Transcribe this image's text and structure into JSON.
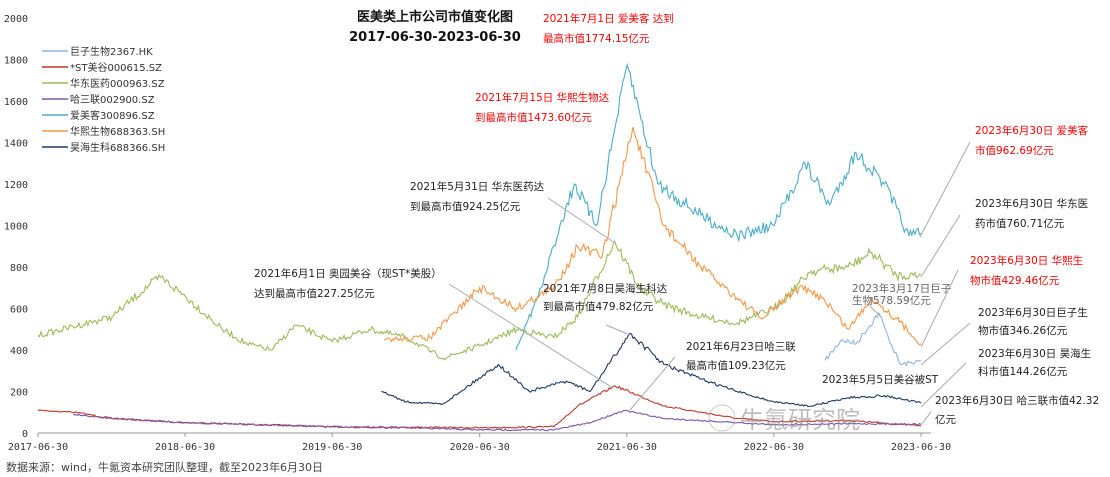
{
  "chart_data": {
    "type": "line",
    "title": "医美类上市公司市值变化图",
    "subtitle": "2017-06-30-2023-06-30",
    "xlabel": "",
    "ylabel": "",
    "ylim": [
      0,
      2000
    ],
    "yticks": [
      "0",
      "200",
      "400",
      "600",
      "800",
      "1000",
      "1200",
      "1400",
      "1600",
      "1800",
      "2000"
    ],
    "xlim": [
      "2017-06-30",
      "2023-06-30"
    ],
    "xticks": [
      "2017-06-30",
      "2018-06-30",
      "2019-06-30",
      "2020-06-30",
      "2021-06-30",
      "2022-06-30",
      "2023-06-30"
    ],
    "grid": false,
    "legend_position": "top-left",
    "series": [
      {
        "name": "巨子生物2367.HK",
        "color": "#8eb4e3",
        "x": [
          "2022-11-04",
          "2022-12-15",
          "2023-01-20",
          "2023-03-17",
          "2023-04-10",
          "2023-05-10",
          "2023-06-30"
        ],
        "values": [
          350,
          450,
          430,
          578.59,
          460,
          330,
          346.26
        ]
      },
      {
        "name": "*ST美谷000615.SZ",
        "color": "#c0392b",
        "x": [
          "2017-06-30",
          "2017-09-30",
          "2017-12-31",
          "2018-06-30",
          "2018-12-31",
          "2019-06-30",
          "2019-12-31",
          "2020-06-30",
          "2020-12-31",
          "2021-02-28",
          "2021-06-01",
          "2021-09-30",
          "2021-12-31",
          "2022-03-31",
          "2022-06-30",
          "2022-12-31",
          "2023-06-30"
        ],
        "values": [
          110,
          100,
          70,
          50,
          40,
          30,
          28,
          25,
          30,
          130,
          227.25,
          130,
          100,
          70,
          55,
          60,
          35
        ]
      },
      {
        "name": "华东医药000963.SZ",
        "color": "#9bbb59",
        "x": [
          "2017-06-30",
          "2017-12-31",
          "2018-03-31",
          "2018-04-30",
          "2018-06-30",
          "2018-09-30",
          "2018-11-30",
          "2019-01-31",
          "2019-03-31",
          "2019-06-30",
          "2019-09-30",
          "2019-12-31",
          "2020-03-31",
          "2020-06-30",
          "2020-09-30",
          "2020-12-31",
          "2021-02-28",
          "2021-05-31",
          "2021-07-31",
          "2021-09-30",
          "2021-12-31",
          "2022-03-31",
          "2022-06-30",
          "2022-09-30",
          "2022-12-31",
          "2023-02-28",
          "2023-04-30",
          "2023-06-30"
        ],
        "values": [
          470,
          560,
          710,
          750,
          660,
          500,
          430,
          400,
          520,
          440,
          500,
          460,
          360,
          420,
          500,
          460,
          560,
          924.25,
          700,
          620,
          560,
          530,
          600,
          780,
          800,
          870,
          760,
          760.71
        ]
      },
      {
        "name": "哈三联002900.SZ",
        "color": "#7e57a8",
        "x": [
          "2017-09-25",
          "2017-12-31",
          "2018-06-30",
          "2018-12-31",
          "2019-06-30",
          "2019-12-31",
          "2020-06-30",
          "2020-12-31",
          "2021-03-31",
          "2021-06-23",
          "2021-09-30",
          "2021-12-31",
          "2022-06-30",
          "2022-12-31",
          "2023-06-30"
        ],
        "values": [
          90,
          70,
          50,
          40,
          30,
          25,
          15,
          15,
          50,
          109.23,
          70,
          60,
          40,
          45,
          42.32
        ]
      },
      {
        "name": "爱美客300896.SZ",
        "color": "#4bacc6",
        "x": [
          "2020-09-28",
          "2020-11-30",
          "2021-01-15",
          "2021-02-20",
          "2021-04-15",
          "2021-07-01",
          "2021-09-15",
          "2021-12-31",
          "2022-03-31",
          "2022-06-30",
          "2022-09-15",
          "2022-11-15",
          "2023-01-20",
          "2023-03-31",
          "2023-05-31",
          "2023-06-30"
        ],
        "values": [
          400,
          700,
          1000,
          1200,
          1000,
          1774.15,
          1200,
          1050,
          950,
          1000,
          1300,
          1100,
          1350,
          1200,
          950,
          962.69
        ]
      },
      {
        "name": "华熙生物688363.SH",
        "color": "#f79646",
        "x": [
          "2019-11-06",
          "2020-02-28",
          "2020-06-30",
          "2020-09-30",
          "2020-12-31",
          "2021-02-28",
          "2021-04-30",
          "2021-07-15",
          "2021-09-30",
          "2021-12-31",
          "2022-03-31",
          "2022-05-31",
          "2022-08-31",
          "2022-10-31",
          "2022-12-31",
          "2023-02-28",
          "2023-04-30",
          "2023-06-30"
        ],
        "values": [
          450,
          460,
          700,
          600,
          700,
          900,
          850,
          1473.6,
          1000,
          800,
          650,
          550,
          700,
          650,
          500,
          650,
          550,
          429.46
        ]
      },
      {
        "name": "昊海生科688366.SH",
        "color": "#1f3864",
        "x": [
          "2019-10-30",
          "2019-12-31",
          "2020-03-31",
          "2020-08-15",
          "2020-10-31",
          "2021-01-31",
          "2021-03-31",
          "2021-07-08",
          "2021-09-30",
          "2021-12-31",
          "2022-03-31",
          "2022-06-30",
          "2022-09-30",
          "2022-12-31",
          "2023-03-31",
          "2023-06-30"
        ],
        "values": [
          200,
          150,
          140,
          330,
          200,
          250,
          200,
          479.82,
          330,
          260,
          200,
          150,
          130,
          170,
          180,
          144.26
        ]
      }
    ],
    "annotations": [
      {
        "lines": [
          "2021年7月1日 爱美客 达到",
          "最高市值1774.15亿元"
        ],
        "color": "#ff0000"
      },
      {
        "lines": [
          "2021年7月15日 华熙生物达",
          "到最高市值1473.60亿元"
        ],
        "color": "#ff0000"
      },
      {
        "lines": [
          "2021年5月31日 华东医药达",
          "到最高市值924.25亿元"
        ],
        "color": "#222222"
      },
      {
        "lines": [
          "2021年6月1日 奥园美谷（现ST*美股）",
          "达到最高市值227.25亿元"
        ],
        "color": "#222222"
      },
      {
        "lines": [
          "2021年7月8日昊海生科达",
          "到最高市值479.82亿元"
        ],
        "color": "#222222"
      },
      {
        "lines": [
          "2021年6月23日哈三联",
          "最高市值109.23亿元"
        ],
        "color": "#222222"
      },
      {
        "lines": [
          "2023年5月5日美谷被ST"
        ],
        "color": "#222222"
      },
      {
        "lines": [
          "2023年6月30日 爱美客",
          "市值962.69亿元"
        ],
        "color": "#ff0000"
      },
      {
        "lines": [
          "2023年6月30日 华东医",
          "药市值760.71亿元"
        ],
        "color": "#222222"
      },
      {
        "lines": [
          "2023年6月30日 华熙生",
          "物市值429.46亿元"
        ],
        "color": "#ff0000"
      },
      {
        "lines": [
          "2023年3月17日巨子",
          "生物578.59亿元"
        ],
        "color": "#666666"
      },
      {
        "lines": [
          "2023年6月30日巨子生",
          "物市值346.26亿元"
        ],
        "color": "#222222"
      },
      {
        "lines": [
          "2023年6月30日 昊海生",
          "科市值144.26亿元"
        ],
        "color": "#222222"
      },
      {
        "lines": [
          "2023年6月30日 哈三联市值42.32",
          "亿元"
        ],
        "color": "#222222"
      }
    ]
  },
  "watermark": "牛氪研究院",
  "source": "数据来源：wind，牛氪资本研究团队整理，截至2023年6月30日"
}
